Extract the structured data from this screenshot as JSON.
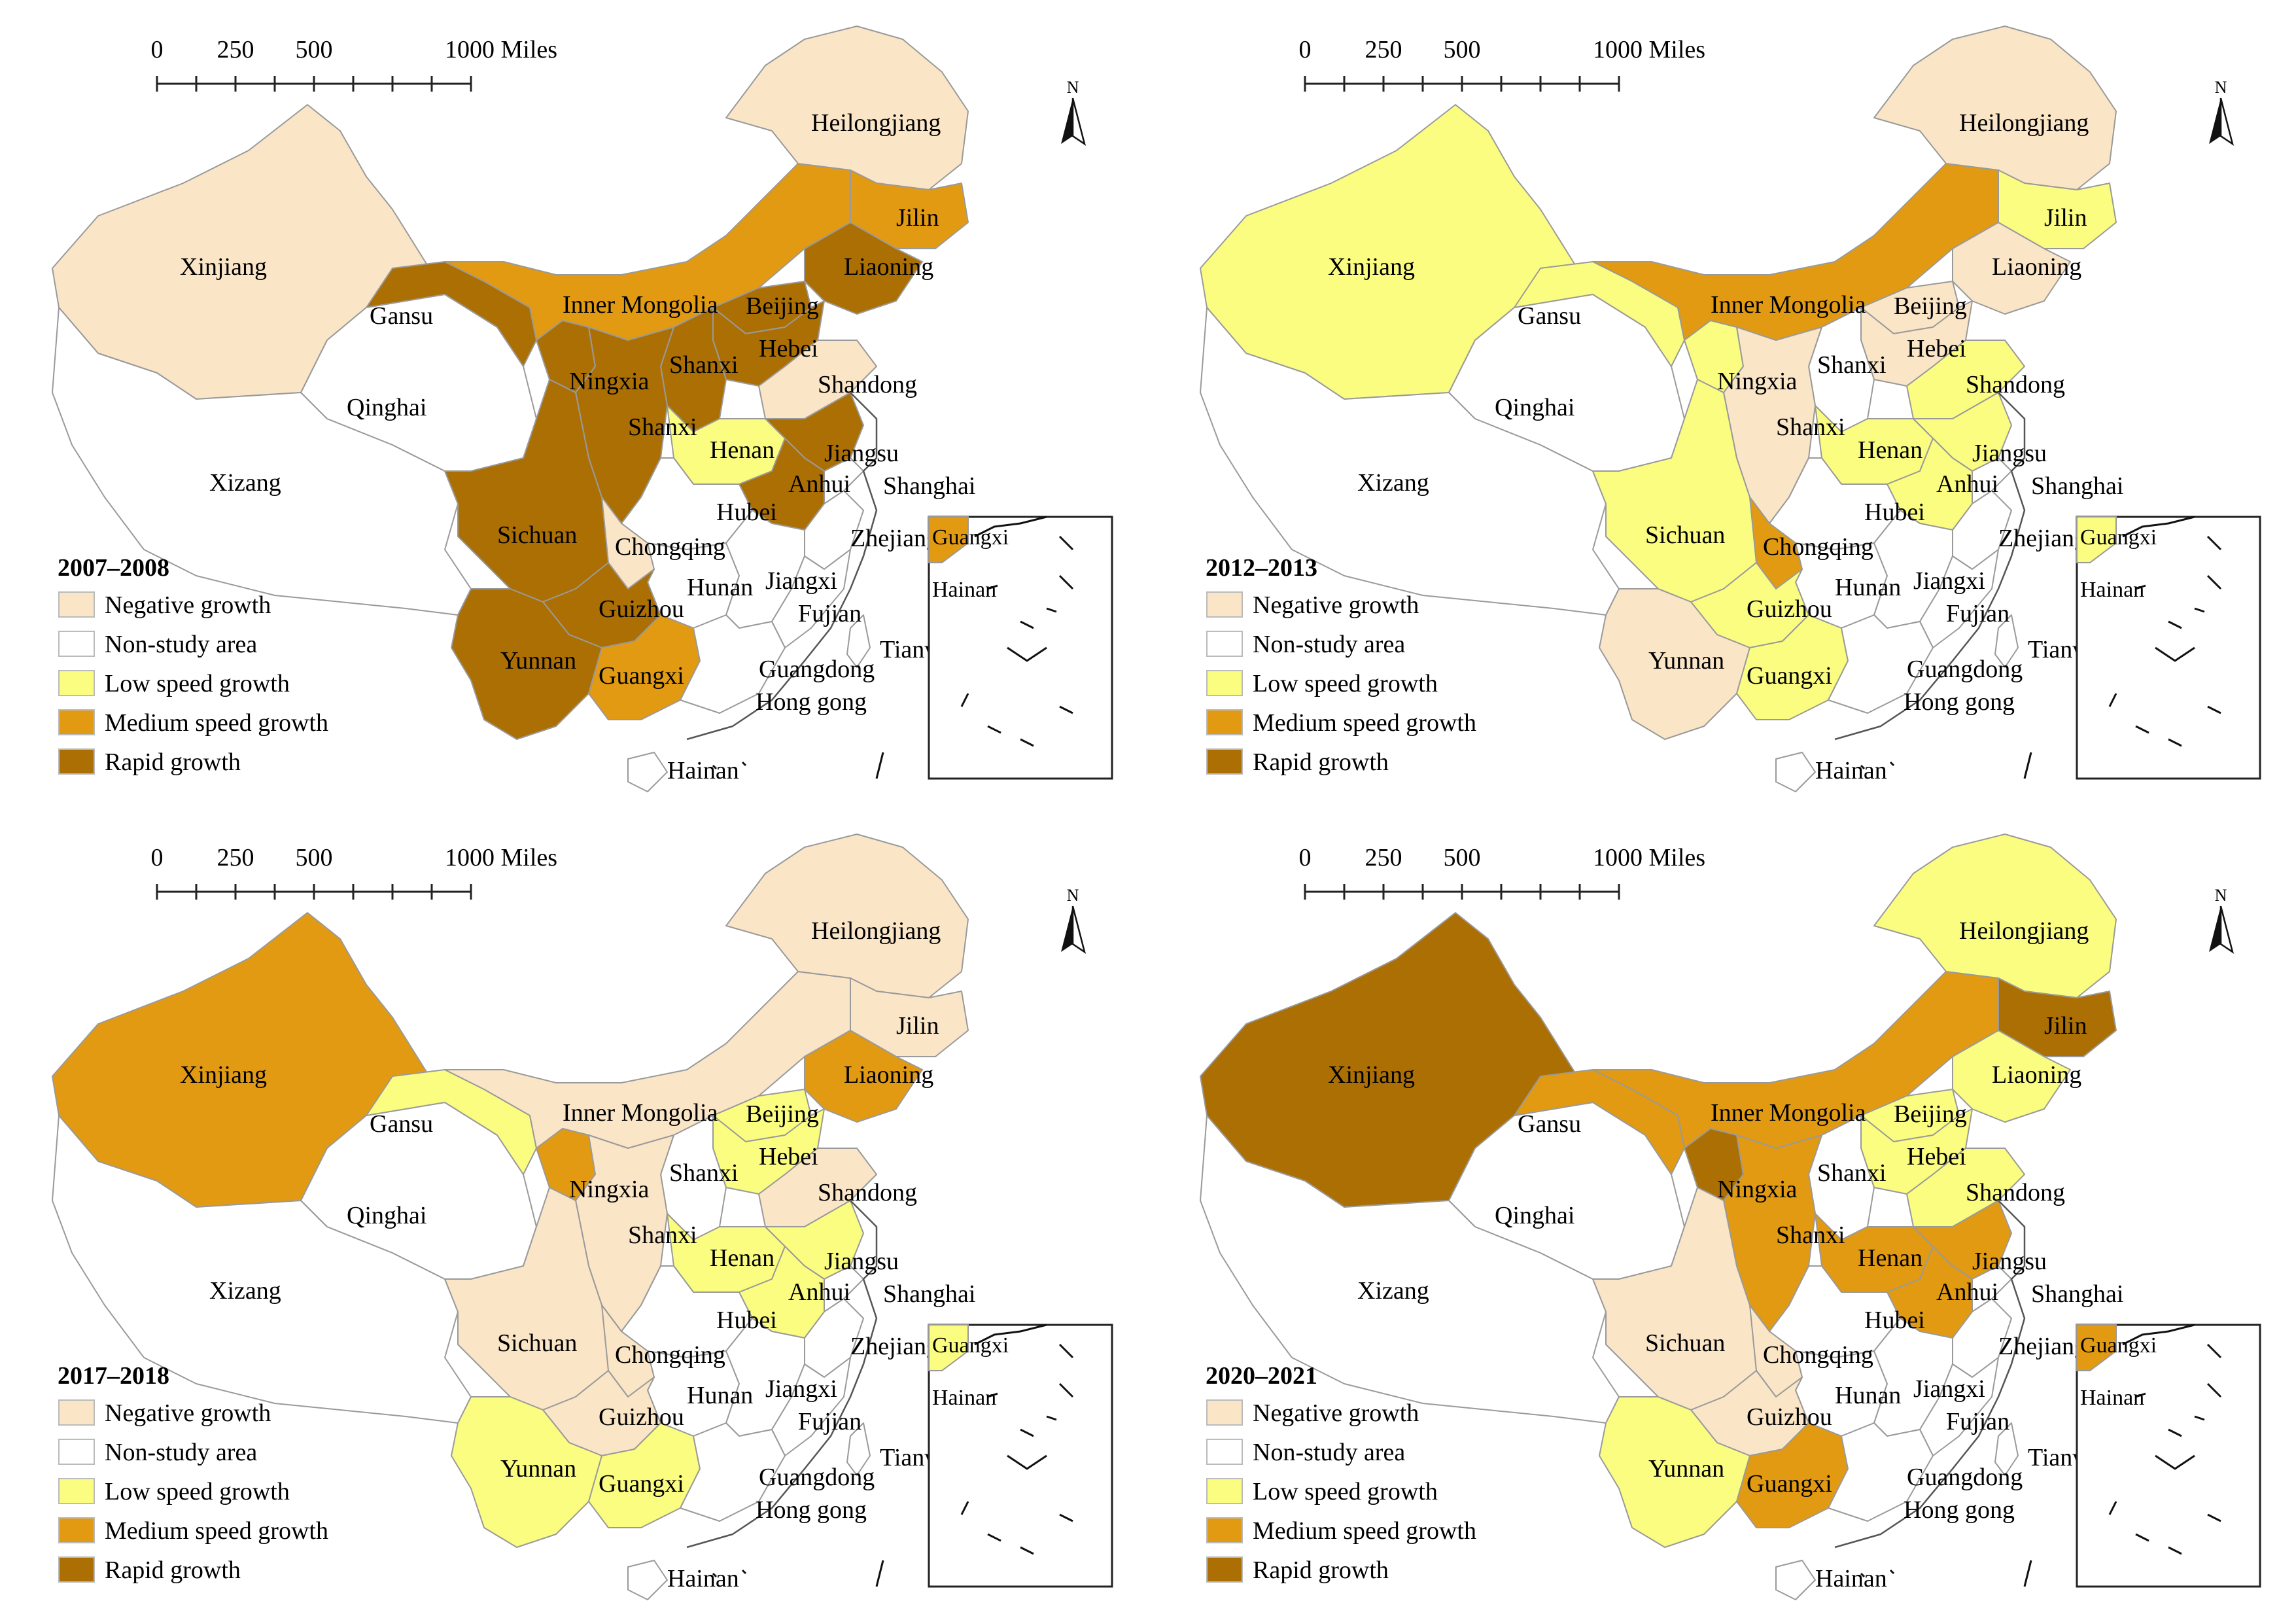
{
  "colors": {
    "Negative growth": "#fae5c7",
    "Non-study area": "#ffffff",
    "Low speed growth": "#fbfd81",
    "Medium speed growth": "#e19a12",
    "Rapid growth": "#ab6f04"
  },
  "legend": [
    "Negative growth",
    "Non-study area",
    "Low speed growth",
    "Medium speed growth",
    "Rapid growth"
  ],
  "scale_labels": [
    "0",
    "250",
    "500",
    "1000 Miles"
  ],
  "north_label": "N",
  "inset_labels": [
    "Guangxi",
    "Hainan"
  ],
  "panels": [
    {
      "year": "2007–2008",
      "classes": {
        "Xinjiang": "Negative growth",
        "Xizang": "Non-study area",
        "Qinghai": "Non-study area",
        "Gansu": "Rapid growth",
        "Inner Mongolia": "Medium speed growth",
        "Heilongjiang": "Negative growth",
        "Jilin": "Medium speed growth",
        "Liaoning": "Rapid growth",
        "Beijing": "Rapid growth",
        "Hebei": "Rapid growth",
        "Shandong": "Negative growth",
        "Shanxi": "Rapid growth",
        "Ningxia": "Rapid growth",
        "Shaanxi": "Rapid growth",
        "Henan": "Low speed growth",
        "Jiangsu": "Rapid growth",
        "Anhui": "Rapid growth",
        "Shanghai": "Non-study area",
        "Hubei": "Non-study area",
        "Sichuan": "Rapid growth",
        "Chongqing": "Negative growth",
        "Hunan": "Non-study area",
        "Jiangxi": "Non-study area",
        "Zhejiang": "Non-study area",
        "Fujian": "Non-study area",
        "Guizhou": "Rapid growth",
        "Yunnan": "Rapid growth",
        "Guangxi": "Medium speed growth",
        "Guangdong": "Non-study area",
        "Hainan": "Non-study area",
        "Taiwan": "Non-study area"
      },
      "inset_guangxi": "Medium speed growth"
    },
    {
      "year": "2012–2013",
      "classes": {
        "Xinjiang": "Low speed growth",
        "Xizang": "Non-study area",
        "Qinghai": "Non-study area",
        "Gansu": "Low speed growth",
        "Inner Mongolia": "Medium speed growth",
        "Heilongjiang": "Negative growth",
        "Jilin": "Low speed growth",
        "Liaoning": "Negative growth",
        "Beijing": "Negative growth",
        "Hebei": "Negative growth",
        "Shandong": "Low speed growth",
        "Shanxi": "Non-study area",
        "Ningxia": "Low speed growth",
        "Shaanxi": "Negative growth",
        "Henan": "Low speed growth",
        "Jiangsu": "Low speed growth",
        "Anhui": "Low speed growth",
        "Shanghai": "Non-study area",
        "Hubei": "Non-study area",
        "Sichuan": "Low speed growth",
        "Chongqing": "Medium speed growth",
        "Hunan": "Non-study area",
        "Jiangxi": "Non-study area",
        "Zhejiang": "Non-study area",
        "Fujian": "Non-study area",
        "Guizhou": "Low speed growth",
        "Yunnan": "Negative growth",
        "Guangxi": "Low speed growth",
        "Guangdong": "Non-study area",
        "Hainan": "Non-study area",
        "Taiwan": "Non-study area"
      },
      "inset_guangxi": "Low speed growth"
    },
    {
      "year": "2017–2018",
      "classes": {
        "Xinjiang": "Medium speed growth",
        "Xizang": "Non-study area",
        "Qinghai": "Non-study area",
        "Gansu": "Low speed growth",
        "Inner Mongolia": "Negative growth",
        "Heilongjiang": "Negative growth",
        "Jilin": "Negative growth",
        "Liaoning": "Medium speed growth",
        "Beijing": "Low speed growth",
        "Hebei": "Low speed growth",
        "Shandong": "Negative growth",
        "Shanxi": "Non-study area",
        "Ningxia": "Medium speed growth",
        "Shaanxi": "Negative growth",
        "Henan": "Low speed growth",
        "Jiangsu": "Low speed growth",
        "Anhui": "Low speed growth",
        "Shanghai": "Non-study area",
        "Hubei": "Non-study area",
        "Sichuan": "Negative growth",
        "Chongqing": "Negative growth",
        "Hunan": "Non-study area",
        "Jiangxi": "Non-study area",
        "Zhejiang": "Non-study area",
        "Fujian": "Non-study area",
        "Guizhou": "Negative growth",
        "Yunnan": "Low speed growth",
        "Guangxi": "Low speed growth",
        "Guangdong": "Non-study area",
        "Hainan": "Non-study area",
        "Taiwan": "Non-study area"
      },
      "inset_guangxi": "Low speed growth"
    },
    {
      "year": "2020–2021",
      "classes": {
        "Xinjiang": "Rapid growth",
        "Xizang": "Non-study area",
        "Qinghai": "Non-study area",
        "Gansu": "Medium speed growth",
        "Inner Mongolia": "Medium speed growth",
        "Heilongjiang": "Low speed growth",
        "Jilin": "Rapid growth",
        "Liaoning": "Low speed growth",
        "Beijing": "Low speed growth",
        "Hebei": "Low speed growth",
        "Shandong": "Low speed growth",
        "Shanxi": "Non-study area",
        "Ningxia": "Rapid growth",
        "Shaanxi": "Medium speed growth",
        "Henan": "Medium speed growth",
        "Jiangsu": "Medium speed growth",
        "Anhui": "Medium speed growth",
        "Shanghai": "Non-study area",
        "Hubei": "Non-study area",
        "Sichuan": "Negative growth",
        "Chongqing": "Negative growth",
        "Hunan": "Non-study area",
        "Jiangxi": "Non-study area",
        "Zhejiang": "Non-study area",
        "Fujian": "Non-study area",
        "Guizhou": "Negative growth",
        "Yunnan": "Low speed growth",
        "Guangxi": "Medium speed growth",
        "Guangdong": "Non-study area",
        "Hainan": "Non-study area",
        "Taiwan": "Non-study area"
      },
      "inset_guangxi": "Medium speed growth"
    }
  ],
  "province_labels": {
    "Heilongjiang": "Heilongjiang",
    "Jilin": "Jilin",
    "Liaoning": "Liaoning",
    "Xinjiang": "Xinjiang",
    "Gansu": "Gansu",
    "Inner Mongolia": "Inner Mongolia",
    "Beijing": "Beijing",
    "Hebei": "Hebei",
    "Shandong": "Shandong",
    "Ningxia": "Ningxia",
    "Shanxi": "Shanxi",
    "Shaanxi": "Shanxi",
    "Qinghai": "Qinghai",
    "Xizang": "Xizang",
    "Henan": "Henan",
    "Jiangsu": "Jiangsu",
    "Anhui": "Anhui",
    "Shanghai": "Shanghai",
    "Hubei": "Hubei",
    "Sichuan": "Sichuan",
    "Chongqing": "Chongqing",
    "Zhejiang": "Zhejiang",
    "Hunan": "Hunan",
    "Jiangxi": "Jiangxi",
    "Fujian": "Fujian",
    "Taiwan": "Tianwan",
    "Guizhou": "Guizhou",
    "Yunnan": "Yunnan",
    "Guangxi": "Guangxi",
    "Guangdong": "Guangdong",
    "Hongkong": "Hong gong",
    "Hainan": "Hainan"
  }
}
